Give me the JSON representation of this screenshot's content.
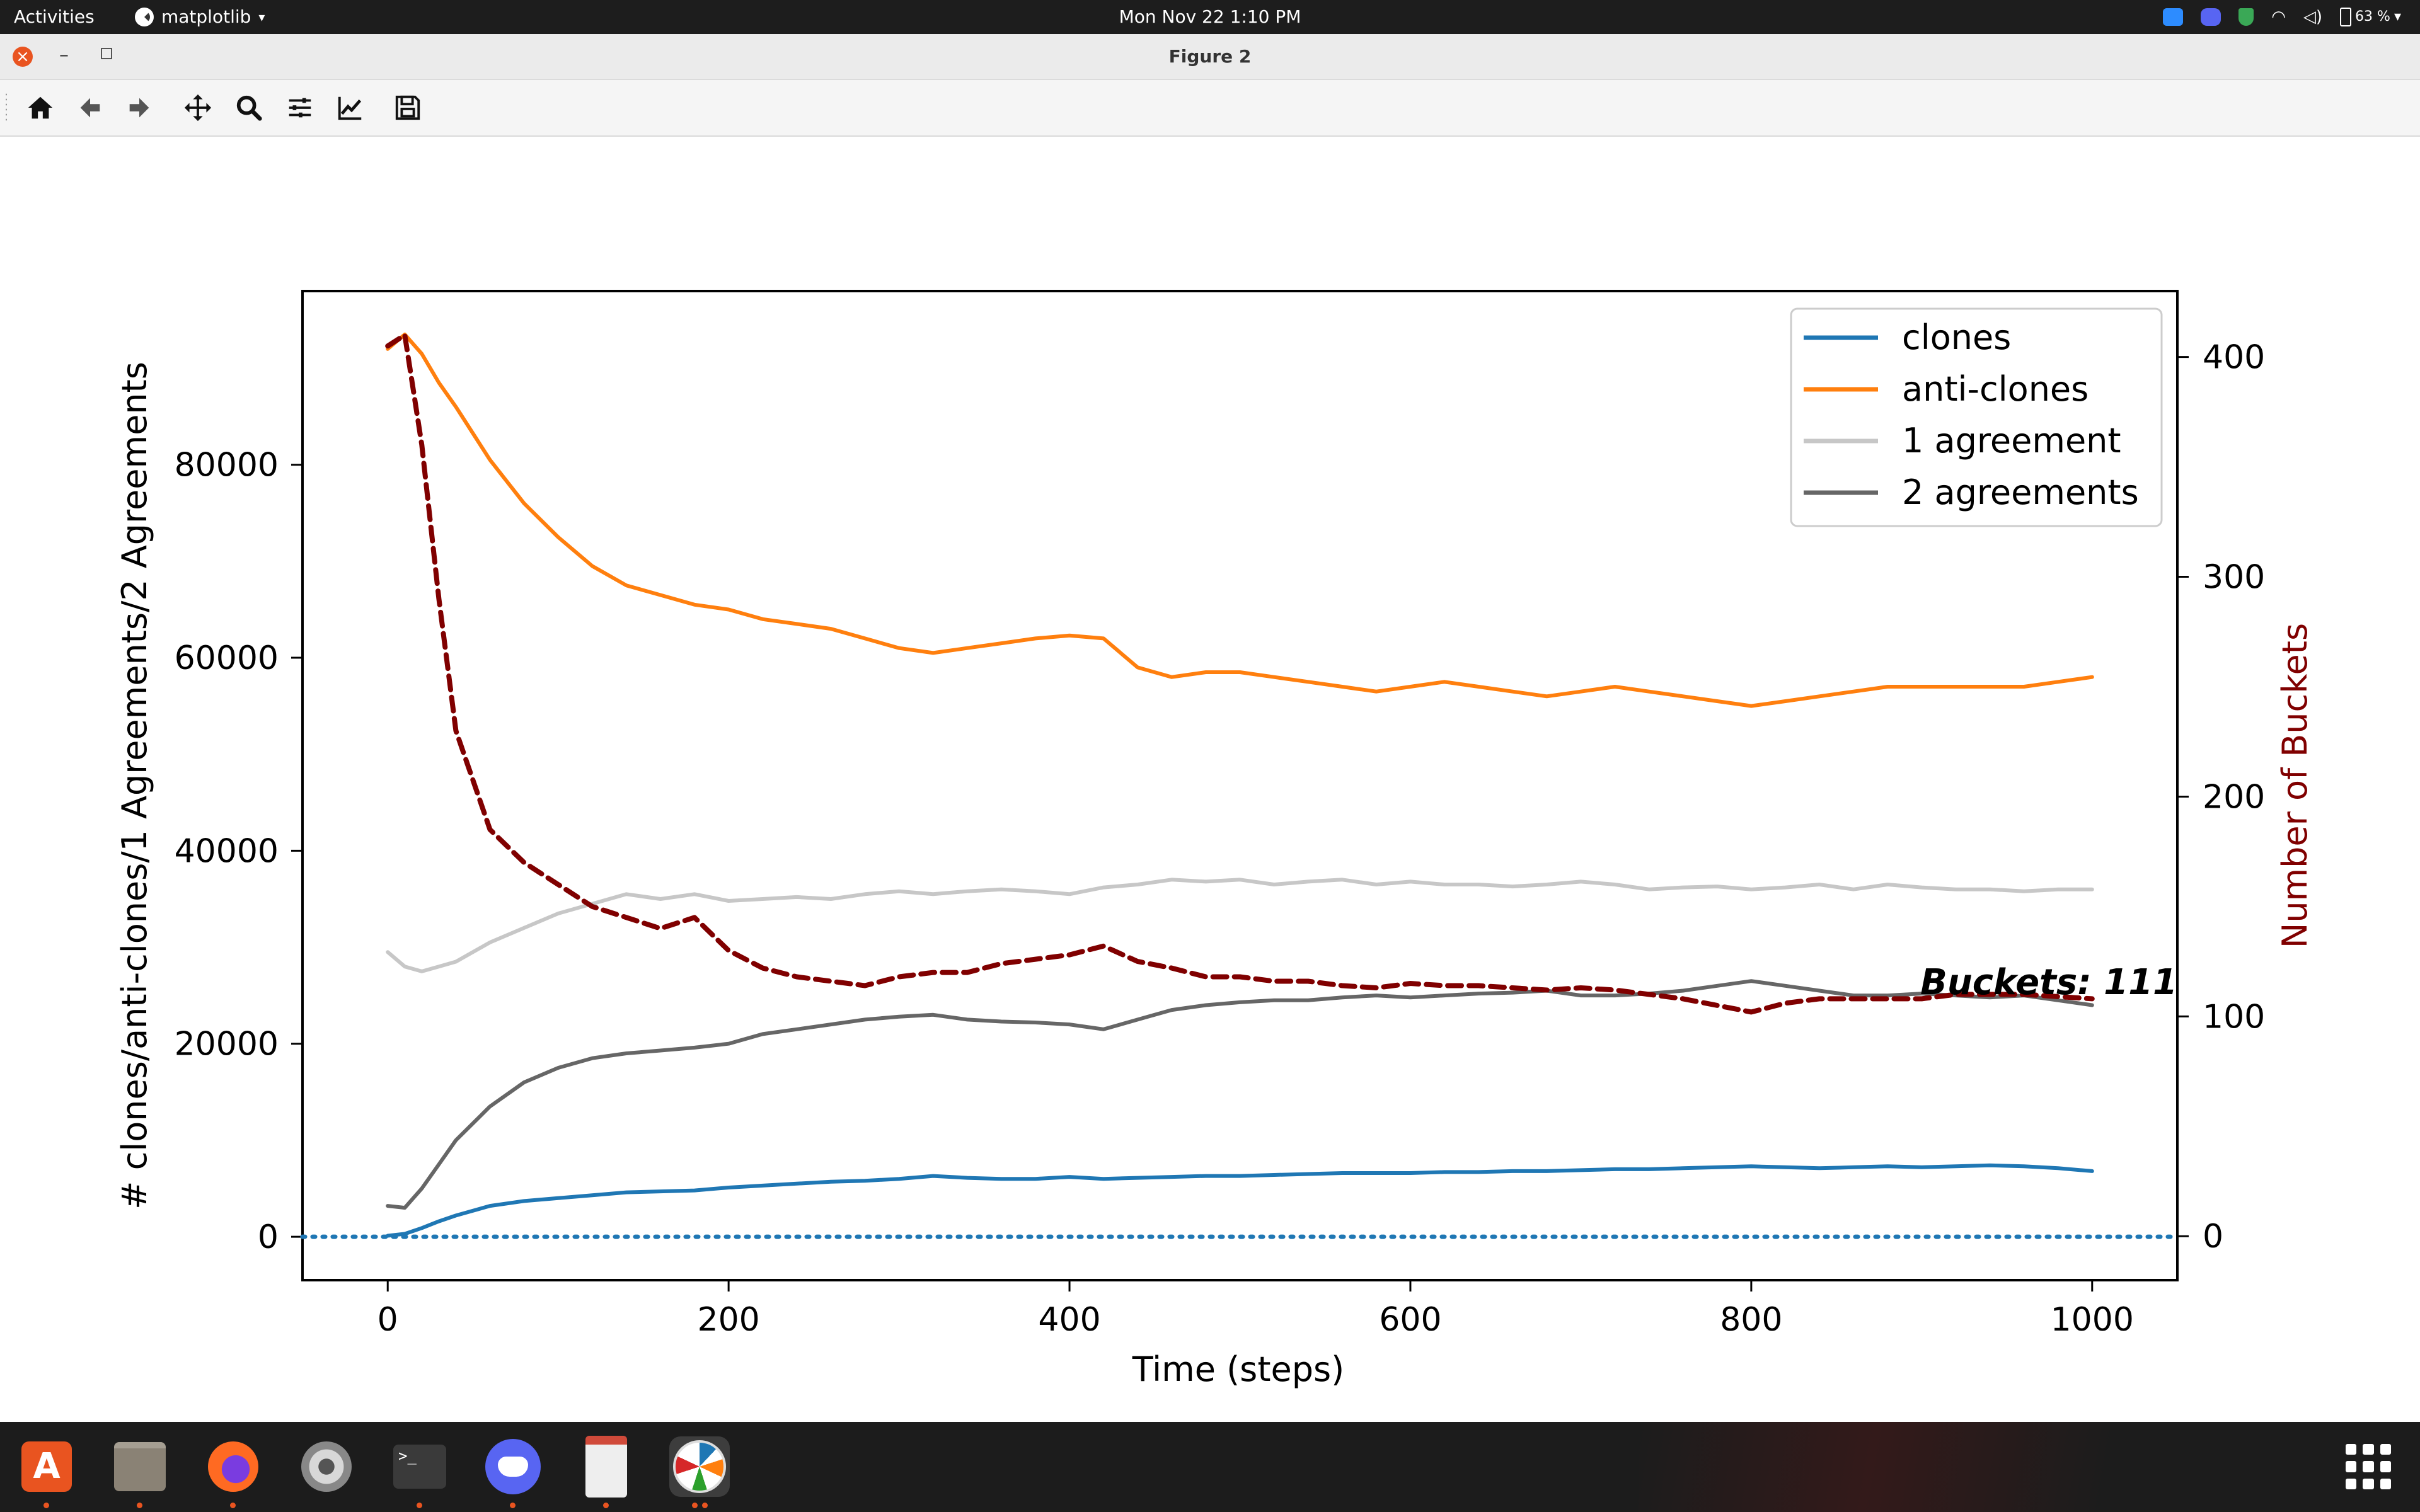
{
  "topbar": {
    "activities": "Activities",
    "app_name": "matplotlib",
    "clock": "Mon Nov 22  1:10 PM",
    "battery": "63 %"
  },
  "window": {
    "title": "Figure 2"
  },
  "toolbar": {
    "tools": [
      "home-icon",
      "back-arrow-icon",
      "forward-arrow-icon",
      "pan-icon",
      "zoom-icon",
      "configure-subplots-icon",
      "edit-axes-icon",
      "save-icon"
    ]
  },
  "dock": {
    "apps": [
      "ubuntu-software",
      "files",
      "firefox",
      "settings",
      "terminal",
      "discord",
      "document-viewer",
      "matplotlib-figure"
    ]
  },
  "colors": {
    "clones": "#1f77b4",
    "anti_clones": "#ff7f0e",
    "one_agreement": "#c7c7c7",
    "two_agreements": "#666666",
    "buckets": "#800000"
  },
  "chart_data": {
    "type": "line",
    "xlabel": "Time (steps)",
    "ylabel_left": "# clones/anti-clones/1 Agreements/2 Agreements",
    "ylabel_right": "Number of Buckets",
    "xlim": [
      -50,
      1050
    ],
    "ylim_left": [
      -4500,
      98000
    ],
    "ylim_right": [
      -20,
      430
    ],
    "xticks": [
      0,
      200,
      400,
      600,
      800,
      1000
    ],
    "yticks_left": [
      0,
      20000,
      40000,
      60000,
      80000
    ],
    "yticks_right": [
      0,
      100,
      200,
      300,
      400
    ],
    "grid": false,
    "legend_position": "upper right",
    "annotation": "Buckets: 111",
    "baseline_y": 0,
    "x": [
      0,
      10,
      20,
      30,
      40,
      60,
      80,
      100,
      120,
      140,
      160,
      180,
      200,
      220,
      240,
      260,
      280,
      300,
      320,
      340,
      360,
      380,
      400,
      420,
      440,
      460,
      480,
      500,
      520,
      540,
      560,
      580,
      600,
      620,
      640,
      660,
      680,
      700,
      720,
      740,
      760,
      780,
      800,
      820,
      840,
      860,
      880,
      900,
      920,
      940,
      960,
      980,
      1000
    ],
    "series": [
      {
        "name": "clones",
        "axis": "left",
        "values": [
          100,
          300,
          900,
          1600,
          2200,
          3200,
          3700,
          4000,
          4300,
          4600,
          4700,
          4800,
          5100,
          5300,
          5500,
          5700,
          5800,
          6000,
          6300,
          6100,
          6000,
          6000,
          6200,
          6000,
          6100,
          6200,
          6300,
          6300,
          6400,
          6500,
          6600,
          6600,
          6600,
          6700,
          6700,
          6800,
          6800,
          6900,
          7000,
          7000,
          7100,
          7200,
          7300,
          7200,
          7100,
          7200,
          7300,
          7200,
          7300,
          7400,
          7300,
          7100,
          6800
        ]
      },
      {
        "name": "anti-clones",
        "axis": "left",
        "values": [
          92000,
          93500,
          91500,
          88500,
          86000,
          80500,
          76000,
          72500,
          69500,
          67500,
          66500,
          65500,
          65000,
          64000,
          63500,
          63000,
          62000,
          61000,
          60500,
          61000,
          61500,
          62000,
          62300,
          62000,
          59000,
          58000,
          58500,
          58500,
          58000,
          57500,
          57000,
          56500,
          57000,
          57500,
          57000,
          56500,
          56000,
          56500,
          57000,
          56500,
          56000,
          55500,
          55000,
          55500,
          56000,
          56500,
          57000,
          57000,
          57000,
          57000,
          57000,
          57500,
          58000
        ]
      },
      {
        "name": "1 agreement",
        "axis": "left",
        "values": [
          29500,
          28000,
          27500,
          28000,
          28500,
          30500,
          32000,
          33500,
          34500,
          35500,
          35000,
          35500,
          34800,
          35000,
          35200,
          35000,
          35500,
          35800,
          35500,
          35800,
          36000,
          35800,
          35500,
          36200,
          36500,
          37000,
          36800,
          37000,
          36500,
          36800,
          37000,
          36500,
          36800,
          36500,
          36500,
          36300,
          36500,
          36800,
          36500,
          36000,
          36200,
          36300,
          36000,
          36200,
          36500,
          36000,
          36500,
          36200,
          36000,
          36000,
          35800,
          36000,
          36000
        ]
      },
      {
        "name": "2 agreements",
        "axis": "left",
        "values": [
          3200,
          3000,
          5000,
          7500,
          10000,
          13500,
          16000,
          17500,
          18500,
          19000,
          19300,
          19600,
          20000,
          21000,
          21500,
          22000,
          22500,
          22800,
          23000,
          22500,
          22300,
          22200,
          22000,
          21500,
          22500,
          23500,
          24000,
          24300,
          24500,
          24500,
          24800,
          25000,
          24800,
          25000,
          25200,
          25300,
          25500,
          25000,
          25000,
          25200,
          25500,
          26000,
          26500,
          26000,
          25500,
          25000,
          25000,
          25200,
          25000,
          24800,
          25000,
          24500,
          24000
        ]
      },
      {
        "name": "buckets",
        "axis": "right",
        "values": [
          405,
          410,
          360,
          290,
          230,
          185,
          170,
          160,
          150,
          145,
          140,
          145,
          130,
          122,
          118,
          116,
          114,
          118,
          120,
          120,
          124,
          126,
          128,
          132,
          125,
          122,
          118,
          118,
          116,
          116,
          114,
          113,
          115,
          114,
          114,
          113,
          112,
          113,
          112,
          110,
          108,
          105,
          102,
          106,
          108,
          108,
          108,
          108,
          110,
          110,
          110,
          109,
          108
        ]
      }
    ]
  }
}
